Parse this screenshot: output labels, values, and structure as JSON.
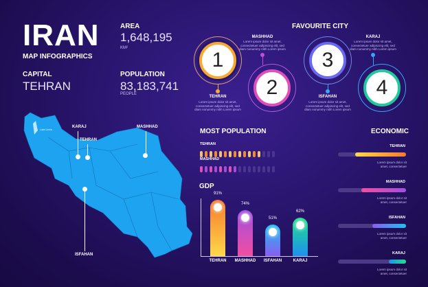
{
  "header": {
    "title": "IRAN",
    "subtitle": "MAP INFOGRAPHICS"
  },
  "stats": {
    "area": {
      "label": "AREA",
      "value": "1,648,195",
      "unit": "KM²"
    },
    "capital": {
      "label": "CAPITAL",
      "value": "TEHRAN"
    },
    "population": {
      "label": "POPULATION",
      "value": "83,183,741",
      "unit": "PEOPLE"
    }
  },
  "map": {
    "lake_label": "Lake Urmia",
    "cities": [
      {
        "name": "KARAJ"
      },
      {
        "name": "TEHRAN"
      },
      {
        "name": "MASHHAD"
      },
      {
        "name": "ISFAHAN"
      }
    ],
    "fill_color": "#1ea3f0"
  },
  "favourite": {
    "title": "FAVOURITE CITY",
    "lorem": "Lorem ipsum dolor sit amet, consectetuer adipiscing elit, sed diam nonummy nibh Lorem ipsum",
    "items": [
      {
        "num": "1",
        "city": "TEHRAN",
        "color": "#f7a934"
      },
      {
        "num": "2",
        "city": "MASHHAD",
        "color": "#c14fd6"
      },
      {
        "num": "3",
        "city": "ISFAHAN",
        "color": "#6a6af0"
      },
      {
        "num": "4",
        "city": "KARAJ",
        "color": "#22c99a"
      }
    ]
  },
  "most_population": {
    "title": "MOST POPULATION",
    "rows": [
      {
        "city": "TEHRAN",
        "filled": 13,
        "total": 16
      },
      {
        "city": "MASHHAD",
        "filled": 8,
        "total": 16
      }
    ]
  },
  "economic": {
    "title": "ECONOMIC",
    "lorem": "Lorem ipsum dolor sit amet, consectetuer",
    "rows": [
      {
        "city": "TEHRAN",
        "pct": 75
      },
      {
        "city": "MASHHAD",
        "pct": 66
      },
      {
        "city": "ISFAHAN",
        "pct": 50
      },
      {
        "city": "KARAJ",
        "pct": 25
      }
    ]
  },
  "gdp": {
    "title": "GDP",
    "bars": [
      {
        "city": "TEHRAN",
        "value": "91%"
      },
      {
        "city": "MASHHAD",
        "value": "74%"
      },
      {
        "city": "ISFAHAN",
        "value": "51%"
      },
      {
        "city": "KARAJ",
        "value": "62%"
      }
    ]
  },
  "chart_data": {
    "type": "bar",
    "title": "GDP",
    "categories": [
      "TEHRAN",
      "MASHHAD",
      "ISFAHAN",
      "KARAJ"
    ],
    "values": [
      91,
      74,
      51,
      62
    ],
    "ylabel": "%",
    "ylim": [
      0,
      100
    ]
  }
}
